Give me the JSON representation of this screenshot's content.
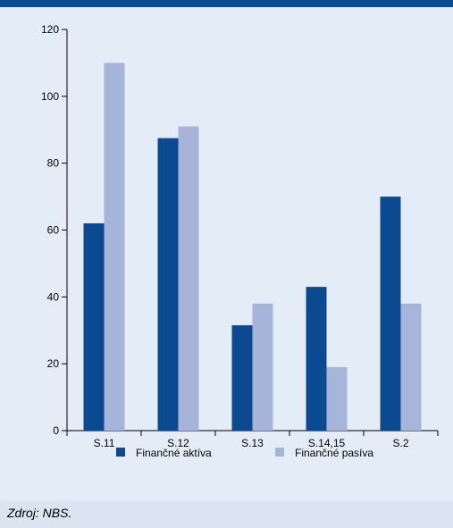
{
  "chart_data": {
    "type": "bar",
    "categories": [
      "S.11",
      "S.12",
      "S.13",
      "S.14,15",
      "S.2"
    ],
    "series": [
      {
        "name": "Finančné aktíva",
        "values": [
          62,
          87.5,
          31.5,
          43,
          70
        ],
        "color": "#0b4a90"
      },
      {
        "name": "Finančné pasíva",
        "values": [
          110,
          91,
          38,
          19,
          38
        ],
        "color": "#a7b4da"
      }
    ],
    "ylim": [
      0,
      120
    ],
    "yticks": [
      "0",
      "20",
      "40",
      "60",
      "80",
      "100",
      "120"
    ],
    "legend_position": "bottom",
    "grid": false
  },
  "source": "Zdroj: NBS."
}
